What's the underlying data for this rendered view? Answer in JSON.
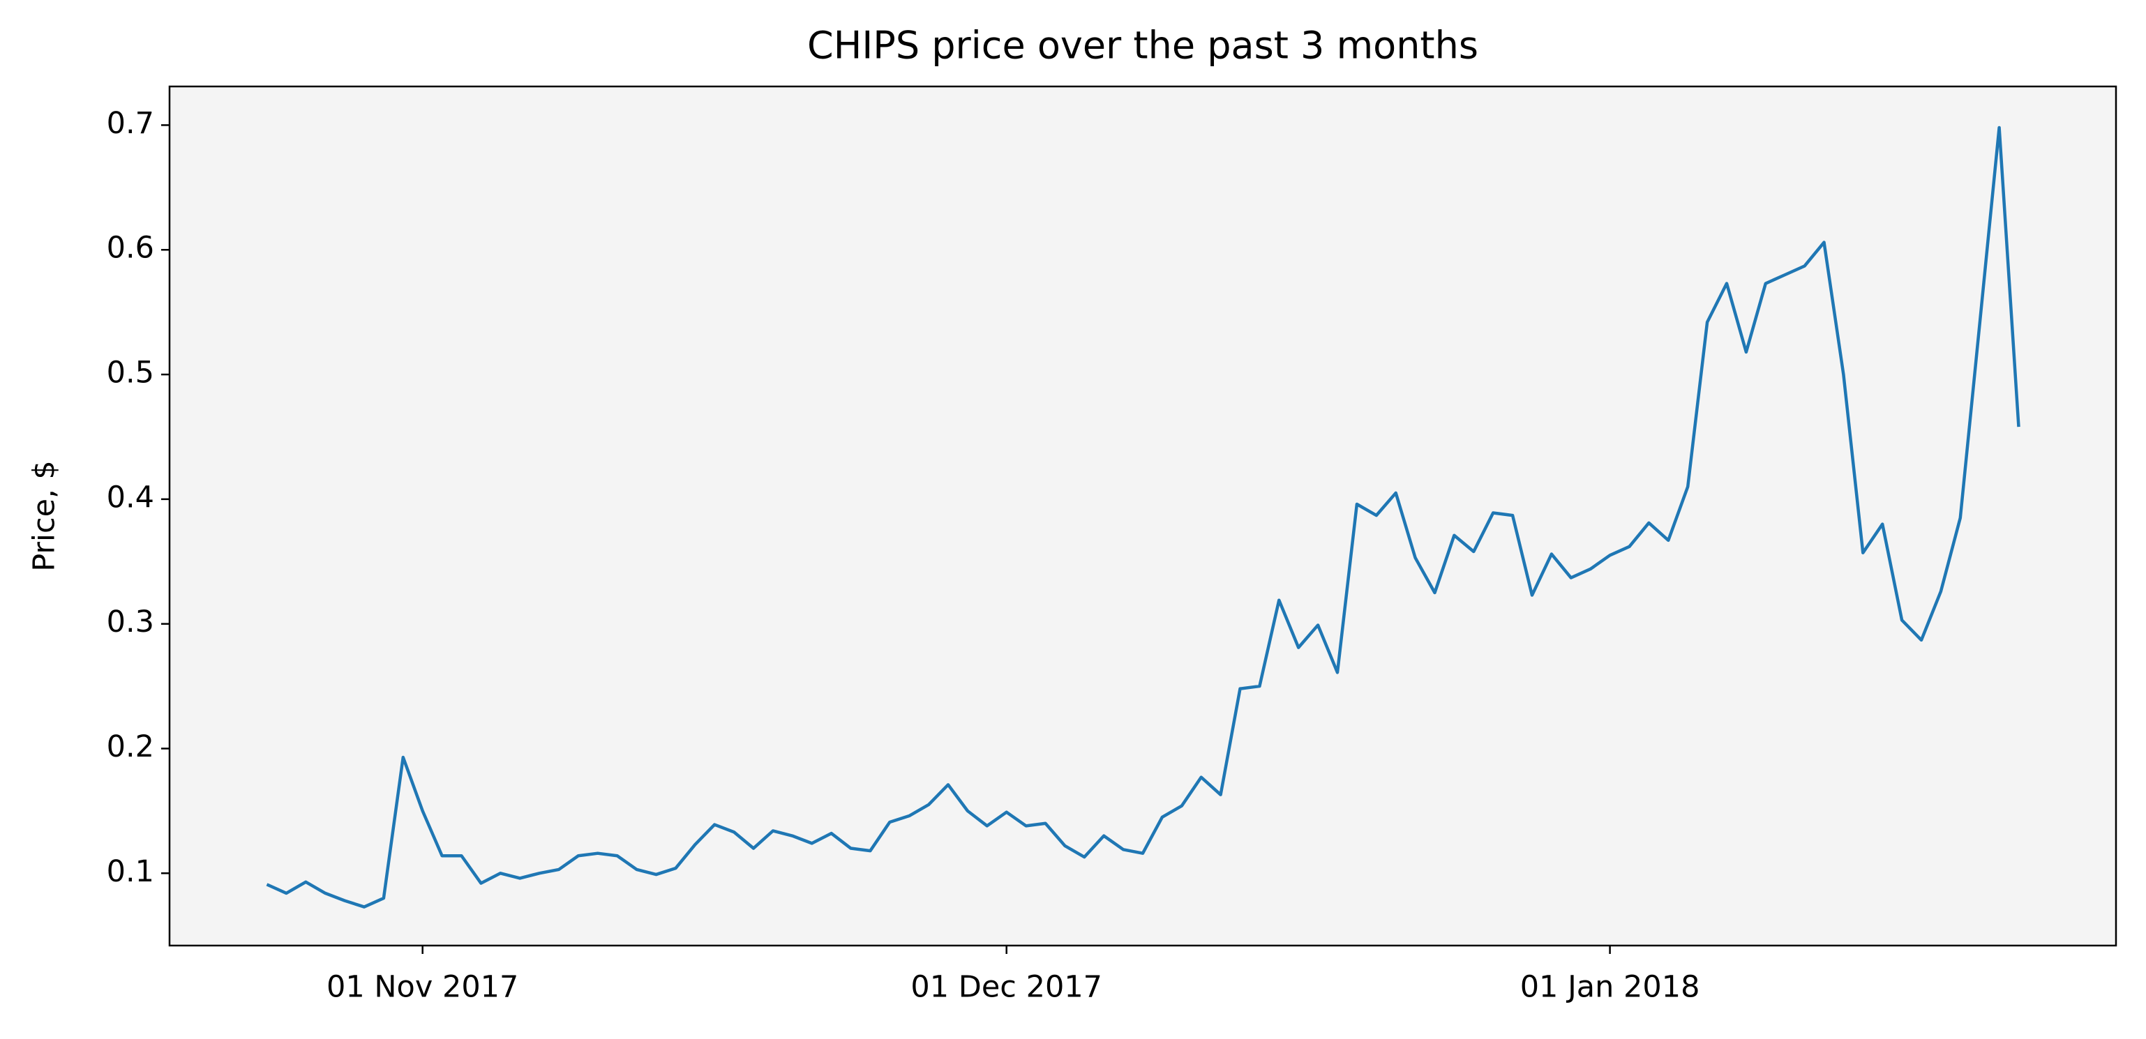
{
  "chart_data": {
    "type": "line",
    "title": "CHIPS price over the past 3 months",
    "y_label": "Price, $",
    "x": [
      "2017-10-24",
      "2017-10-25",
      "2017-10-26",
      "2017-10-27",
      "2017-10-28",
      "2017-10-29",
      "2017-10-30",
      "2017-10-31",
      "2017-11-01",
      "2017-11-02",
      "2017-11-03",
      "2017-11-04",
      "2017-11-05",
      "2017-11-06",
      "2017-11-07",
      "2017-11-08",
      "2017-11-09",
      "2017-11-10",
      "2017-11-11",
      "2017-11-12",
      "2017-11-13",
      "2017-11-14",
      "2017-11-15",
      "2017-11-16",
      "2017-11-17",
      "2017-11-18",
      "2017-11-19",
      "2017-11-20",
      "2017-11-21",
      "2017-11-22",
      "2017-11-23",
      "2017-11-24",
      "2017-11-25",
      "2017-11-26",
      "2017-11-27",
      "2017-11-28",
      "2017-11-29",
      "2017-11-30",
      "2017-12-01",
      "2017-12-02",
      "2017-12-03",
      "2017-12-04",
      "2017-12-05",
      "2017-12-06",
      "2017-12-07",
      "2017-12-08",
      "2017-12-09",
      "2017-12-10",
      "2017-12-11",
      "2017-12-12",
      "2017-12-13",
      "2017-12-14",
      "2017-12-15",
      "2017-12-16",
      "2017-12-17",
      "2017-12-18",
      "2017-12-19",
      "2017-12-20",
      "2017-12-21",
      "2017-12-22",
      "2017-12-23",
      "2017-12-24",
      "2017-12-25",
      "2017-12-26",
      "2017-12-27",
      "2017-12-28",
      "2017-12-29",
      "2017-12-30",
      "2017-12-31",
      "2018-01-01",
      "2018-01-02",
      "2018-01-03",
      "2018-01-04",
      "2018-01-05",
      "2018-01-06",
      "2018-01-07",
      "2018-01-08",
      "2018-01-09",
      "2018-01-10",
      "2018-01-11",
      "2018-01-12",
      "2018-01-13",
      "2018-01-14",
      "2018-01-15",
      "2018-01-16",
      "2018-01-17",
      "2018-01-18",
      "2018-01-19",
      "2018-01-20",
      "2018-01-21",
      "2018-01-22"
    ],
    "series": [
      {
        "name": "CHIPS",
        "color": "#1f77b4",
        "values": [
          0.091,
          0.084,
          0.093,
          0.084,
          0.078,
          0.073,
          0.08,
          0.193,
          0.15,
          0.114,
          0.114,
          0.092,
          0.1,
          0.096,
          0.1,
          0.103,
          0.114,
          0.116,
          0.114,
          0.103,
          0.099,
          0.104,
          0.123,
          0.139,
          0.133,
          0.12,
          0.134,
          0.13,
          0.124,
          0.132,
          0.12,
          0.118,
          0.141,
          0.146,
          0.155,
          0.171,
          0.15,
          0.138,
          0.149,
          0.138,
          0.14,
          0.122,
          0.113,
          0.13,
          0.119,
          0.116,
          0.145,
          0.154,
          0.177,
          0.163,
          0.248,
          0.25,
          0.319,
          0.281,
          0.299,
          0.261,
          0.396,
          0.387,
          0.405,
          0.353,
          0.325,
          0.371,
          0.358,
          0.389,
          0.387,
          0.323,
          0.356,
          0.337,
          0.344,
          0.355,
          0.362,
          0.381,
          0.367,
          0.41,
          0.542,
          0.573,
          0.518,
          0.573,
          0.58,
          0.587,
          0.606,
          0.5,
          0.357,
          0.38,
          0.303,
          0.287,
          0.326,
          0.385,
          0.541,
          0.698,
          0.458
        ]
      }
    ],
    "xlim": [
      "2017-10-19",
      "2018-01-27"
    ],
    "xticks": [
      {
        "value": "2017-11-01",
        "label": "01 Nov 2017"
      },
      {
        "value": "2017-12-01",
        "label": "01 Dec 2017"
      },
      {
        "value": "2018-01-01",
        "label": "01 Jan 2018"
      }
    ],
    "ylim": [
      0.042,
      0.731
    ],
    "yticks": [
      0.1,
      0.2,
      0.3,
      0.4,
      0.5,
      0.6,
      0.7
    ],
    "background": "#f4f4f4"
  }
}
